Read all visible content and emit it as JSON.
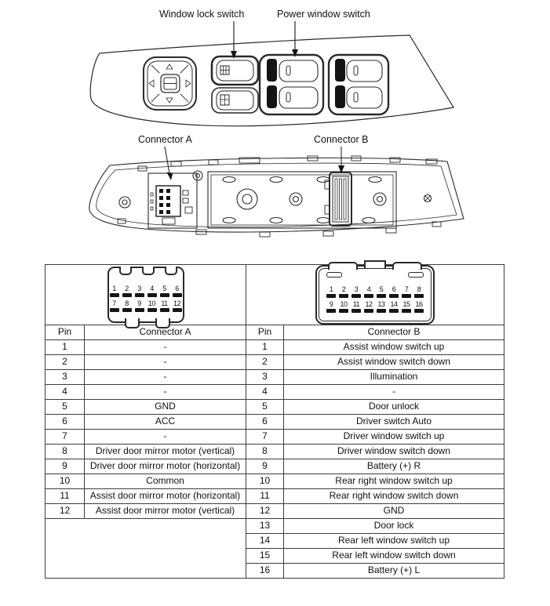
{
  "colors": {
    "line": "#2a2a2a",
    "pin_bar": "#151515",
    "background": "#ffffff"
  },
  "labels": {
    "window_lock": "Window lock switch",
    "power_window": "Power window switch",
    "connector_a": "Connector A",
    "connector_b": "Connector B"
  },
  "connector_a_pinout": {
    "row1": [
      "1",
      "2",
      "3",
      "4",
      "5",
      "6"
    ],
    "row2": [
      "7",
      "8",
      "9",
      "10",
      "11",
      "12"
    ]
  },
  "connector_b_pinout": {
    "row1": [
      "1",
      "2",
      "3",
      "4",
      "5",
      "6",
      "7",
      "8"
    ],
    "row2": [
      "9",
      "10",
      "11",
      "12",
      "13",
      "14",
      "15",
      "16"
    ]
  },
  "table_a": {
    "pin_header": "Pin",
    "name_header": "Connector A",
    "rows": [
      {
        "pin": "1",
        "desc": "-"
      },
      {
        "pin": "2",
        "desc": "-"
      },
      {
        "pin": "3",
        "desc": "-"
      },
      {
        "pin": "4",
        "desc": "-"
      },
      {
        "pin": "5",
        "desc": "GND"
      },
      {
        "pin": "6",
        "desc": "ACC"
      },
      {
        "pin": "7",
        "desc": "-"
      },
      {
        "pin": "8",
        "desc": "Driver door mirror motor (vertical)"
      },
      {
        "pin": "9",
        "desc": "Driver door mirror motor (horizontal)"
      },
      {
        "pin": "10",
        "desc": "Common"
      },
      {
        "pin": "11",
        "desc": "Assist door mirror motor (horizontal)"
      },
      {
        "pin": "12",
        "desc": "Assist door mirror motor (vertical)"
      }
    ]
  },
  "table_b": {
    "pin_header": "Pin",
    "name_header": "Connector B",
    "rows": [
      {
        "pin": "1",
        "desc": "Assist window switch up"
      },
      {
        "pin": "2",
        "desc": "Assist window switch down"
      },
      {
        "pin": "3",
        "desc": "Illumination"
      },
      {
        "pin": "4",
        "desc": "-"
      },
      {
        "pin": "5",
        "desc": "Door unlock"
      },
      {
        "pin": "6",
        "desc": "Driver switch Auto"
      },
      {
        "pin": "7",
        "desc": "Driver window switch up"
      },
      {
        "pin": "8",
        "desc": "Driver window switch down"
      },
      {
        "pin": "9",
        "desc": "Battery (+) R"
      },
      {
        "pin": "10",
        "desc": "Rear right window switch up"
      },
      {
        "pin": "11",
        "desc": "Rear right window switch down"
      },
      {
        "pin": "12",
        "desc": "GND"
      },
      {
        "pin": "13",
        "desc": "Door lock"
      },
      {
        "pin": "14",
        "desc": "Rear left window switch up"
      },
      {
        "pin": "15",
        "desc": "Rear left window switch down"
      },
      {
        "pin": "16",
        "desc": "Battery (+) L"
      }
    ]
  }
}
